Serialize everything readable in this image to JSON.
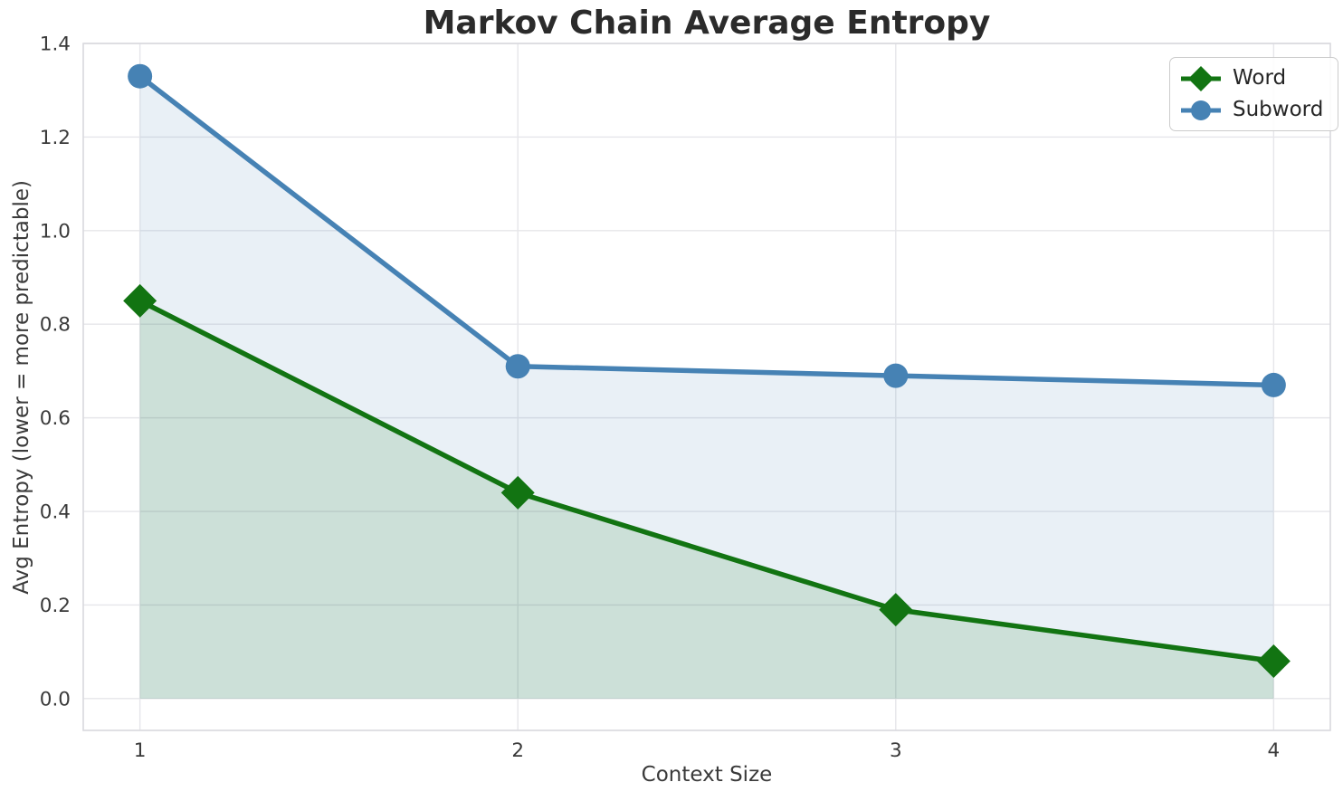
{
  "chart_data": {
    "type": "line",
    "title": "Markov Chain Average Entropy",
    "xlabel": "Context Size",
    "ylabel": "Avg Entropy (lower = more predictable)",
    "x": [
      1,
      2,
      3,
      4
    ],
    "xticks": [
      "1",
      "2",
      "3",
      "4"
    ],
    "ytick_values": [
      0.0,
      0.2,
      0.4,
      0.6,
      0.8,
      1.0,
      1.2,
      1.4
    ],
    "yticks": [
      "0.0",
      "0.2",
      "0.4",
      "0.6",
      "0.8",
      "1.0",
      "1.2",
      "1.4"
    ],
    "xlim": [
      0.85,
      4.15
    ],
    "ylim": [
      -0.068,
      1.4
    ],
    "grid": true,
    "legend_position": "upper right",
    "fill_baseline": 0,
    "series": [
      {
        "name": "Word",
        "color": "#127412",
        "marker": "diamond",
        "fill_opacity": 0.13,
        "values": [
          0.85,
          0.44,
          0.19,
          0.08
        ]
      },
      {
        "name": "Subword",
        "color": "#4682b4",
        "marker": "circle",
        "fill_opacity": 0.12,
        "values": [
          1.33,
          0.71,
          0.69,
          0.67
        ]
      }
    ]
  }
}
